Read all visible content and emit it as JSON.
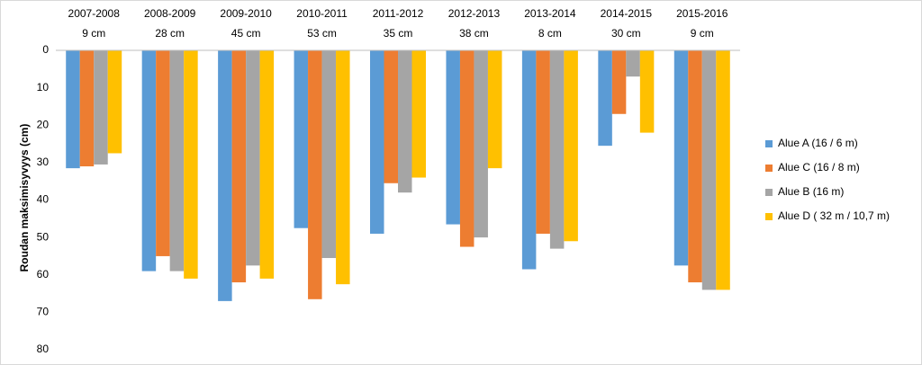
{
  "chart_data": {
    "type": "bar",
    "y_label": "Roudan maksimisyvyys (cm)",
    "categories": [
      "2007-2008",
      "2008-2009",
      "2009-2010",
      "2010-2011",
      "2011-2012",
      "2012-2013",
      "2013-2014",
      "2014-2015",
      "2015-2016"
    ],
    "category_sublabels": [
      "9 cm",
      "28 cm",
      "45 cm",
      "53 cm",
      "35 cm",
      "38 cm",
      "8 cm",
      "30 cm",
      "9 cm"
    ],
    "series": [
      {
        "name": "Alue A (16 / 6 m)",
        "color": "#5b9bd5",
        "values": [
          31.5,
          59,
          67,
          47.5,
          49,
          46.5,
          58.5,
          25.5,
          57.5
        ]
      },
      {
        "name": "Alue C (16 / 8 m)",
        "color": "#ed7d31",
        "values": [
          31,
          55,
          62,
          66.5,
          35.5,
          52.5,
          49,
          17,
          62
        ]
      },
      {
        "name": "Alue B (16 m)",
        "color": "#a5a5a5",
        "values": [
          30.5,
          59,
          57.5,
          55.5,
          38,
          50,
          53,
          7,
          64
        ]
      },
      {
        "name": "Alue D ( 32 m / 10,7 m)",
        "color": "#ffc000",
        "values": [
          27.5,
          61,
          61,
          62.5,
          34,
          31.5,
          51,
          22,
          64
        ]
      }
    ],
    "ylim": [
      0,
      80
    ],
    "yticks": [
      0,
      10,
      20,
      30,
      40,
      50,
      60,
      70,
      80
    ],
    "y_inverted": true,
    "grid": false,
    "legend": "right"
  }
}
